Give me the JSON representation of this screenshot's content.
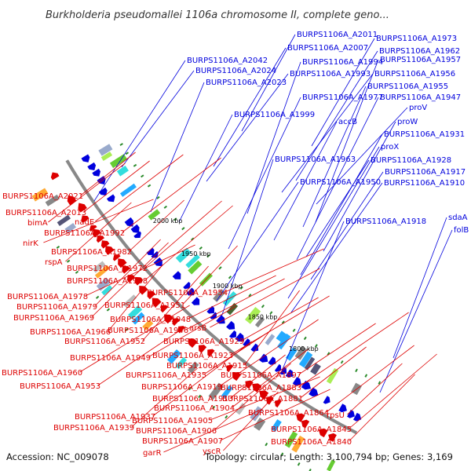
{
  "title": "Burkholderia pseudomallei 1106a chromosome II, complete geno...",
  "footer": {
    "accession": "Accession: NC_009078",
    "summary": "Topology: circular; Length: 3,100,794 bp; Genes: 3,169"
  },
  "ticks": [
    "2000 kbp",
    "1950 kbp",
    "1900 kbp",
    "1850 kbp",
    "1800 kbp"
  ],
  "colors": {
    "forward": "#0000dd",
    "reverse": "#dd0000",
    "backbone": "#888888",
    "minor": "#2a8a2a"
  },
  "blue_labels": [
    "BURPS1106A_A2011",
    "BURPS1106A_A1973",
    "BURPS1106A_A2007",
    "BURPS1106A_A1962",
    "BURPS1106A_A2042",
    "BURPS1106A_A1994",
    "BURPS1106A_A1957",
    "BURPS1106A_A2024",
    "BURPS1106A_A1993",
    "BURPS1106A_A1956",
    "BURPS1106A_A2023",
    "BURPS1106A_A1955",
    "BURPS1106A_A1977",
    "BURPS1106A_A1947",
    "proV",
    "BURPS1106A_A1999",
    "accB",
    "proW",
    "BURPS1106A_A1931",
    "proX",
    "BURPS1106A_A1963",
    "BURPS1106A_A1928",
    "BURPS1106A_A1917",
    "BURPS1106A_A1950",
    "BURPS1106A_A1910",
    "sdaA",
    "BURPS1106A_A1918",
    "folB"
  ],
  "red_labels": [
    "BURPS1106A_A2021",
    "BURPS1106A_A2013",
    "bimA",
    "nadE",
    "BURPS1106A_A1992",
    "nirK",
    "BURPS1106A_A1982",
    "rspA",
    "BURPS1106A_A1972",
    "BURPS1106A_A1968",
    "BURPS1106A_A1954",
    "BURPS1106A_A1978",
    "BURPS1106A_A1951",
    "BURPS1106A_A1979",
    "BURPS1106A_A1969",
    "BURPS1106A_A1948",
    "BURPS1106A_A1946",
    "arsB",
    "BURPS1106A_A1966",
    "BURPS1106A_A1952",
    "BURPS1106A_A1929",
    "BURPS1106A_A1949",
    "BURPS1106A_A1923",
    "BURPS1106A_A1960",
    "BURPS1106A_A1915",
    "BURPS1106A_A1935",
    "BURPS1106A_A1897",
    "BURPS1106A_A1953",
    "BURPS1106A_A1919",
    "BURPS1106A_A1883",
    "BURPS1106A_A1913",
    "BURPS1106A_A1881",
    "BURPS1106A_A1904",
    "BURPS1106A_A1864",
    "BURPS1106A_A1937",
    "BURPS1106A_A1905",
    "rpsU",
    "BURPS1106A_A1939",
    "BURPS1106A_A1906",
    "BURPS1106A_A1845",
    "garR",
    "BURPS1106A_A1907",
    "yscR",
    "BURPS1106A_A1840"
  ]
}
